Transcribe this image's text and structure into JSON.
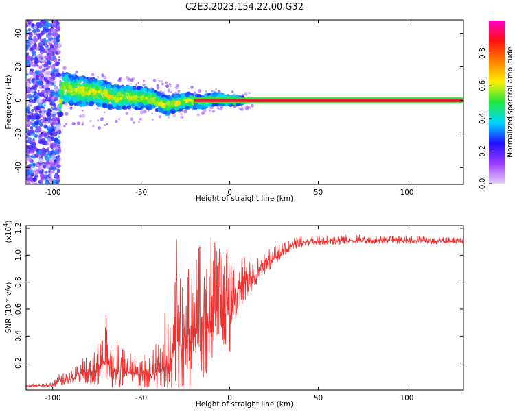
{
  "title": "C2E3.2023.154.22.00.G32",
  "chart_data": [
    {
      "type": "heatmap",
      "xlabel": "Height of straight line (km)",
      "ylabel": "Frequency (Hz)",
      "xlim": [
        -115,
        132
      ],
      "ylim": [
        -50,
        48
      ],
      "xticks": [
        -100,
        -50,
        0,
        50,
        100
      ],
      "xtick_labels": [
        "-100",
        "-50",
        "0",
        "50",
        "100"
      ],
      "yticks": [
        -40,
        -20,
        0,
        20,
        40
      ],
      "ytick_labels": [
        "-40",
        "-20",
        "0",
        "20",
        "40"
      ],
      "grid": false,
      "colorbar": {
        "label": "Normalized spectral amplitude",
        "range": [
          0,
          1
        ],
        "ticks": [
          0.0,
          0.2,
          0.4,
          0.6,
          0.8
        ],
        "tick_labels": [
          "0.0",
          "0.2",
          "0.4",
          "0.6",
          "0.8"
        ],
        "colors": [
          "#e6d0ff",
          "#9a3cff",
          "#2010ff",
          "#00d8ff",
          "#20e840",
          "#ffee00",
          "#ff8000",
          "#ff1010",
          "#ff00c8"
        ]
      },
      "features": [
        {
          "region": "scattered noise",
          "x_range": [
            -115,
            -96
          ],
          "freq_range": [
            -50,
            48
          ],
          "level": 0.15
        },
        {
          "region": "ridge",
          "points": [
            [
              -95,
              7
            ],
            [
              -85,
              6
            ],
            [
              -75,
              5
            ],
            [
              -65,
              2
            ],
            [
              -55,
              2
            ],
            [
              -45,
              1
            ],
            [
              -35,
              -3
            ],
            [
              -25,
              0
            ],
            [
              -15,
              -1
            ],
            [
              -8,
              1
            ],
            [
              0,
              0
            ]
          ],
          "level": 0.5
        },
        {
          "region": "steady line",
          "x_range": [
            -20,
            132
          ],
          "freq": 0,
          "level": 0.9
        }
      ]
    },
    {
      "type": "line",
      "xlabel": "Height of straight line (km)",
      "ylabel": "SNR (10 * v/v)",
      "y_multiplier": "(x10",
      "y_multiplier_exp": "4",
      "y_multiplier_close": ")",
      "xlim": [
        -115,
        132
      ],
      "ylim": [
        0,
        12200
      ],
      "xticks": [
        -100,
        -50,
        0,
        50,
        100
      ],
      "xtick_labels": [
        "-100",
        "-50",
        "0",
        "50",
        "100"
      ],
      "yticks": [
        2000,
        4000,
        6000,
        8000,
        10000,
        12000
      ],
      "ytick_labels": [
        "0.2",
        "0.4",
        "0.6",
        "0.8",
        "1.0",
        "1.2"
      ],
      "grid": false,
      "color": "#ee3333",
      "envelope": [
        {
          "x": -115,
          "base": 300,
          "amp": 150
        },
        {
          "x": -100,
          "base": 350,
          "amp": 200
        },
        {
          "x": -96,
          "base": 700,
          "amp": 600
        },
        {
          "x": -90,
          "base": 800,
          "amp": 600
        },
        {
          "x": -83,
          "base": 1200,
          "amp": 1200
        },
        {
          "x": -75,
          "base": 1500,
          "amp": 1800
        },
        {
          "x": -70,
          "base": 2200,
          "amp": 3500
        },
        {
          "x": -65,
          "base": 1500,
          "amp": 2200
        },
        {
          "x": -55,
          "base": 1300,
          "amp": 1800
        },
        {
          "x": -45,
          "base": 1000,
          "amp": 1500
        },
        {
          "x": -40,
          "base": 1400,
          "amp": 2500
        },
        {
          "x": -35,
          "base": 1800,
          "amp": 5000
        },
        {
          "x": -30,
          "base": 3500,
          "amp": 8000
        },
        {
          "x": -25,
          "base": 4000,
          "amp": 8000
        },
        {
          "x": -20,
          "base": 4500,
          "amp": 7500
        },
        {
          "x": -15,
          "base": 5000,
          "amp": 7000
        },
        {
          "x": -10,
          "base": 5500,
          "amp": 6000
        },
        {
          "x": -5,
          "base": 6500,
          "amp": 4500
        },
        {
          "x": 0,
          "base": 5500,
          "amp": 5000
        },
        {
          "x": 5,
          "base": 7500,
          "amp": 2500
        },
        {
          "x": 15,
          "base": 8500,
          "amp": 1200
        },
        {
          "x": 25,
          "base": 9800,
          "amp": 900
        },
        {
          "x": 35,
          "base": 10700,
          "amp": 600
        },
        {
          "x": 45,
          "base": 11000,
          "amp": 500
        },
        {
          "x": 80,
          "base": 11100,
          "amp": 400
        },
        {
          "x": 100,
          "base": 11050,
          "amp": 400
        },
        {
          "x": 132,
          "base": 11000,
          "amp": 300
        }
      ]
    }
  ]
}
